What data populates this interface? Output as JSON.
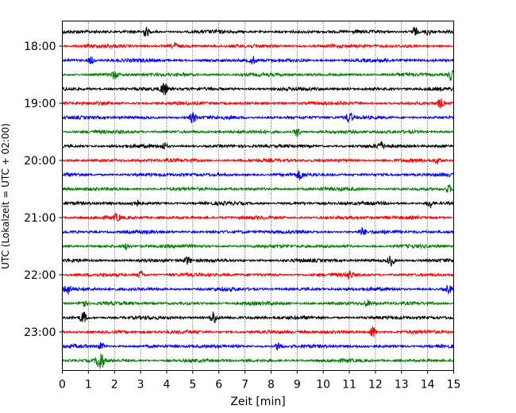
{
  "chart_data": {
    "type": "line",
    "title": "",
    "xlabel": "Zeit  [min]",
    "ylabel": "UTC (Lokalzeit = UTC + 02:00)",
    "xlim": [
      0,
      15
    ],
    "x_ticks": [
      "0",
      "1",
      "2",
      "3",
      "4",
      "5",
      "6",
      "7",
      "8",
      "9",
      "10",
      "11",
      "12",
      "13",
      "14",
      "15"
    ],
    "y_ticks": [
      "18:00",
      "19:00",
      "20:00",
      "21:00",
      "22:00",
      "23:00"
    ],
    "grid": "vertical dotted",
    "legend": "none",
    "trace_start_utc": "17:45",
    "trace_interval_min": 15,
    "trace_count": 24,
    "trace_colors": [
      "#000000",
      "#ff0000",
      "#0000ff",
      "#008000"
    ],
    "events": [
      {
        "trace": 1,
        "x": 3.2,
        "amp": 0.6
      },
      {
        "trace": 1,
        "x": 13.5,
        "amp": 0.6
      },
      {
        "trace": 1,
        "x": 14.0,
        "amp": 0.4
      },
      {
        "trace": 2,
        "x": 4.3,
        "amp": 0.4
      },
      {
        "trace": 3,
        "x": 1.1,
        "amp": 0.5
      },
      {
        "trace": 3,
        "x": 7.3,
        "amp": 0.5
      },
      {
        "trace": 4,
        "x": 2.0,
        "amp": 0.5
      },
      {
        "trace": 4,
        "x": 14.9,
        "amp": 0.8
      },
      {
        "trace": 5,
        "x": 3.9,
        "amp": 0.9
      },
      {
        "trace": 6,
        "x": 14.5,
        "amp": 0.6
      },
      {
        "trace": 7,
        "x": 5.0,
        "amp": 0.7
      },
      {
        "trace": 7,
        "x": 11.0,
        "amp": 0.7
      },
      {
        "trace": 8,
        "x": 9.0,
        "amp": 0.6
      },
      {
        "trace": 9,
        "x": 3.9,
        "amp": 0.4
      },
      {
        "trace": 9,
        "x": 12.2,
        "amp": 0.5
      },
      {
        "trace": 10,
        "x": 14.4,
        "amp": 0.4
      },
      {
        "trace": 11,
        "x": 9.1,
        "amp": 0.5
      },
      {
        "trace": 12,
        "x": 14.8,
        "amp": 0.5
      },
      {
        "trace": 13,
        "x": 2.8,
        "amp": 0.5
      },
      {
        "trace": 13,
        "x": 14.1,
        "amp": 0.6
      },
      {
        "trace": 14,
        "x": 2.1,
        "amp": 0.4
      },
      {
        "trace": 15,
        "x": 11.5,
        "amp": 0.5
      },
      {
        "trace": 16,
        "x": 2.5,
        "amp": 0.4
      },
      {
        "trace": 17,
        "x": 12.6,
        "amp": 0.7
      },
      {
        "trace": 17,
        "x": 4.8,
        "amp": 0.5
      },
      {
        "trace": 18,
        "x": 3.0,
        "amp": 0.5
      },
      {
        "trace": 18,
        "x": 11.0,
        "amp": 0.5
      },
      {
        "trace": 19,
        "x": 0.2,
        "amp": 0.7
      },
      {
        "trace": 19,
        "x": 14.8,
        "amp": 0.5
      },
      {
        "trace": 20,
        "x": 0.8,
        "amp": 0.6
      },
      {
        "trace": 20,
        "x": 11.7,
        "amp": 0.4
      },
      {
        "trace": 21,
        "x": 0.8,
        "amp": 0.8
      },
      {
        "trace": 21,
        "x": 5.8,
        "amp": 0.9
      },
      {
        "trace": 22,
        "x": 11.9,
        "amp": 0.8
      },
      {
        "trace": 23,
        "x": 8.3,
        "amp": 0.6
      },
      {
        "trace": 23,
        "x": 1.5,
        "amp": 0.5
      },
      {
        "trace": 24,
        "x": 1.45,
        "amp": 1.5
      }
    ]
  }
}
